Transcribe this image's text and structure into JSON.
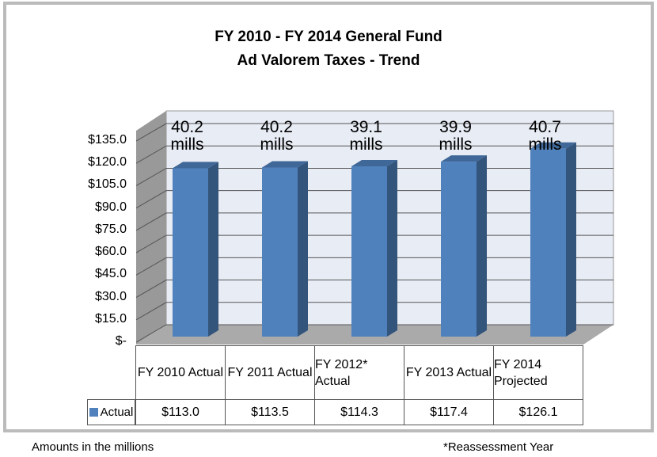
{
  "chart_data": {
    "type": "bar",
    "title": "FY 2010 - FY 2014 General Fund",
    "subtitle": "Ad Valorem Taxes - Trend",
    "categories": [
      "FY 2010\nActual",
      "FY 2011\nActual",
      "FY 2012*\nActual",
      "FY 2013\nActual",
      "FY 2014\nProjected"
    ],
    "series": [
      {
        "name": "Actual",
        "color": "#4f81bd",
        "values": [
          113.0,
          113.5,
          114.3,
          117.4,
          126.1
        ],
        "value_labels": [
          "$113.0",
          "$113.5",
          "$114.3",
          "$117.4",
          "$126.1"
        ]
      }
    ],
    "annotations": [
      "40.2\nmills",
      "40.2\nmills",
      "39.1\nmills",
      "39.9\nmills",
      "40.7\nmills"
    ],
    "ylim": [
      0,
      150
    ],
    "yticks": [
      {
        "value": 0,
        "label": "$-"
      },
      {
        "value": 15,
        "label": "$15.0"
      },
      {
        "value": 30,
        "label": "$30.0"
      },
      {
        "value": 45,
        "label": "$45.0"
      },
      {
        "value": 60,
        "label": "$60.0"
      },
      {
        "value": 75,
        "label": "$75.0"
      },
      {
        "value": 90,
        "label": "$90.0"
      },
      {
        "value": 105,
        "label": "$105.0"
      },
      {
        "value": 120,
        "label": "$120.0"
      },
      {
        "value": 135,
        "label": "$135.0"
      }
    ],
    "grid": true,
    "footnotes": [
      "Amounts in the millions",
      "*Reassessment Year"
    ]
  }
}
